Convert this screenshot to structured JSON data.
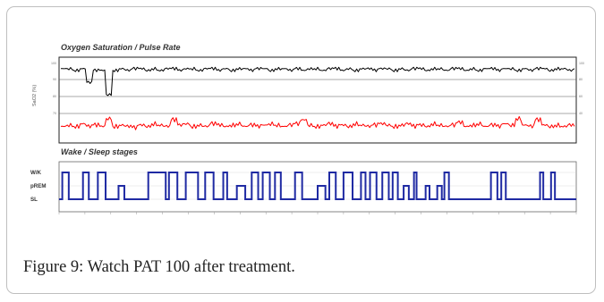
{
  "figure": {
    "caption": "Figure 9: Watch PAT 100 after treatment."
  },
  "chart_data": [
    {
      "type": "line",
      "title": "Oxygen Saturation / Pulse Rate",
      "ylabel": "SaO2 (%)",
      "y_ticks_left": [
        "100",
        "90",
        "80",
        "70"
      ],
      "y_ticks_right": [
        "100",
        "80",
        "60",
        "40"
      ],
      "grid": true,
      "series": [
        {
          "color": "#000000",
          "values": [
            97,
            97,
            96,
            97,
            89,
            96,
            96,
            82,
            96,
            97,
            96,
            97,
            97,
            96,
            97,
            96,
            97,
            97,
            96,
            97,
            97,
            96,
            97,
            97,
            96,
            97,
            96,
            97,
            97,
            96,
            97,
            97,
            96,
            97,
            97,
            96,
            97,
            96,
            97,
            97,
            96,
            97,
            97,
            96,
            97,
            96,
            97,
            97,
            96,
            97,
            97,
            96,
            97,
            96,
            97,
            97,
            96,
            97,
            97,
            96,
            97,
            97,
            96,
            97,
            96,
            97,
            97,
            96,
            97,
            97,
            96,
            97,
            96,
            97,
            97,
            96,
            97,
            97,
            96,
            97
          ]
        },
        {
          "color": "#ff0000",
          "values": [
            52,
            53,
            52,
            54,
            52,
            53,
            52,
            58,
            52,
            53,
            52,
            51,
            53,
            52,
            54,
            53,
            52,
            57,
            53,
            54,
            52,
            53,
            52,
            54,
            53,
            52,
            53,
            54,
            52,
            53,
            52,
            53,
            54,
            53,
            52,
            53,
            54,
            57,
            53,
            52,
            53,
            54,
            52,
            53,
            52,
            54,
            53,
            52,
            53,
            54,
            53,
            52,
            53,
            54,
            52,
            53,
            52,
            54,
            53,
            52,
            53,
            55,
            52,
            53,
            54,
            52,
            53,
            52,
            54,
            53,
            58,
            53,
            52,
            57,
            53,
            52,
            53,
            52,
            53,
            52
          ]
        }
      ]
    },
    {
      "type": "line",
      "title": "Wake / Sleep stages",
      "y_categories": [
        "W/K",
        "pREM",
        "SL"
      ],
      "grid": true,
      "series": [
        {
          "color": "#1f2aa3",
          "step": true,
          "points": [
            [
              0,
              2
            ],
            [
              0.5,
              0
            ],
            [
              1.5,
              2
            ],
            [
              3.7,
              0
            ],
            [
              4.6,
              2
            ],
            [
              6.0,
              0
            ],
            [
              7.2,
              2
            ],
            [
              9.2,
              1
            ],
            [
              10.1,
              2
            ],
            [
              13.8,
              0
            ],
            [
              16.5,
              2
            ],
            [
              17.0,
              0
            ],
            [
              18.3,
              2
            ],
            [
              19.6,
              0
            ],
            [
              21.5,
              2
            ],
            [
              22.6,
              0
            ],
            [
              23.9,
              2
            ],
            [
              25.4,
              0
            ],
            [
              26.0,
              2
            ],
            [
              27.5,
              1
            ],
            [
              28.8,
              2
            ],
            [
              29.8,
              0
            ],
            [
              30.8,
              2
            ],
            [
              31.5,
              0
            ],
            [
              32.6,
              2
            ],
            [
              33.4,
              0
            ],
            [
              34.3,
              2
            ],
            [
              36.5,
              0
            ],
            [
              37.6,
              2
            ],
            [
              40.0,
              1
            ],
            [
              41.2,
              2
            ],
            [
              41.8,
              0
            ],
            [
              42.8,
              2
            ],
            [
              44.0,
              0
            ],
            [
              45.4,
              2
            ],
            [
              46.7,
              0
            ],
            [
              47.4,
              2
            ],
            [
              48.1,
              0
            ],
            [
              49.1,
              2
            ],
            [
              50.0,
              0
            ],
            [
              51.0,
              2
            ],
            [
              51.6,
              0
            ],
            [
              52.4,
              2
            ],
            [
              53.3,
              1
            ],
            [
              54.1,
              2
            ],
            [
              54.9,
              0
            ],
            [
              55.3,
              2
            ],
            [
              56.7,
              1
            ],
            [
              57.3,
              2
            ],
            [
              58.5,
              1
            ],
            [
              59.2,
              2
            ],
            [
              59.6,
              0
            ],
            [
              60.3,
              2
            ],
            [
              66.8,
              0
            ],
            [
              67.8,
              2
            ],
            [
              68.4,
              0
            ],
            [
              69.1,
              2
            ],
            [
              74.4,
              0
            ],
            [
              74.9,
              2
            ],
            [
              76.1,
              0
            ],
            [
              76.7,
              2
            ],
            [
              80.0,
              2
            ]
          ]
        }
      ]
    }
  ]
}
